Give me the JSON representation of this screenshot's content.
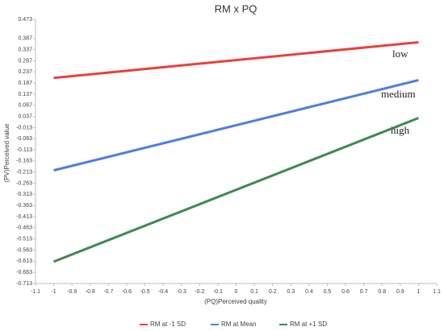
{
  "chart_data": {
    "type": "line",
    "title": "RM x PQ",
    "x_label": "(PQ)Perceived quality",
    "y_label": "(PV)Perceived value",
    "x": [
      -1,
      1
    ],
    "series": [
      {
        "name": "RM at -1 SD",
        "color": "#e8413d",
        "values": [
          0.21,
          0.37
        ]
      },
      {
        "name": "RM at Mean",
        "color": "#4f7fd9",
        "values": [
          -0.205,
          0.2
        ]
      },
      {
        "name": "RM at +1 SD",
        "color": "#3c8a4f",
        "values": [
          -0.615,
          0.03
        ]
      }
    ],
    "annotations": [
      "low",
      "medium",
      "high"
    ],
    "xlim": [
      -1.1,
      1.1
    ],
    "xticks": [
      -1.1,
      -1,
      -0.9,
      -0.8,
      -0.7,
      -0.6,
      -0.5,
      -0.4,
      -0.3,
      -0.2,
      -0.1,
      0,
      0.1,
      0.2,
      0.3,
      0.4,
      0.5,
      0.6,
      0.7,
      0.8,
      0.9,
      1,
      1.1
    ],
    "ylim": [
      -0.713,
      0.473
    ],
    "yticks": [
      0.473,
      0.387,
      0.337,
      0.287,
      0.237,
      0.187,
      0.137,
      0.087,
      0.037,
      -0.013,
      -0.063,
      -0.113,
      -0.163,
      -0.213,
      -0.263,
      -0.313,
      -0.363,
      -0.413,
      -0.463,
      -0.513,
      -0.563,
      -0.613,
      -0.663,
      -0.713
    ],
    "legend": "bottom",
    "grid": false
  }
}
